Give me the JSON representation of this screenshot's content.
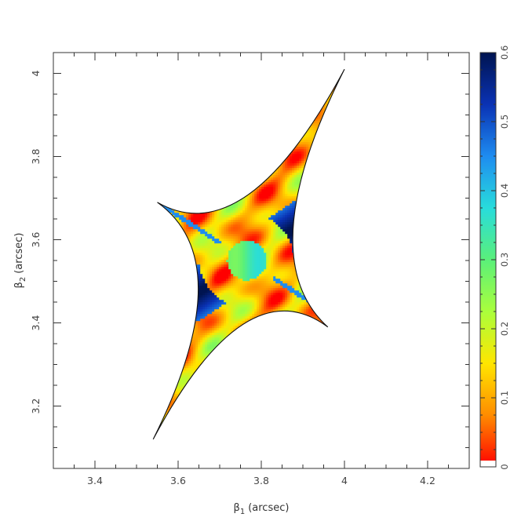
{
  "chart_data": {
    "type": "heatmap",
    "title": "",
    "xlabel": {
      "symbol": "β",
      "subscript": "1",
      "unit": "(arcsec)"
    },
    "ylabel": {
      "symbol": "β",
      "subscript": "2",
      "unit": "(arcsec)"
    },
    "xlim": [
      3.3,
      4.3
    ],
    "ylim": [
      3.05,
      4.05
    ],
    "x_ticks": [
      "3.4",
      "3.6",
      "3.8",
      "4",
      "4.2"
    ],
    "x_tick_values": [
      3.4,
      3.6,
      3.8,
      4.0,
      4.2
    ],
    "y_ticks": [
      "3.2",
      "3.4",
      "3.6",
      "3.8",
      "4"
    ],
    "y_tick_values": [
      3.2,
      3.4,
      3.6,
      3.8,
      4.0
    ],
    "grid": false,
    "caustic_cusps": [
      {
        "x": 4.0,
        "y": 4.01
      },
      {
        "x": 3.55,
        "y": 3.69
      },
      {
        "x": 3.96,
        "y": 3.39
      },
      {
        "x": 3.54,
        "y": 3.12
      }
    ],
    "colorbar": {
      "range": [
        0,
        0.6
      ],
      "ticks": [
        "0",
        "0.1",
        "0.2",
        "0.3",
        "0.4",
        "0.5",
        "0.6"
      ],
      "tick_values": [
        0,
        0.1,
        0.2,
        0.3,
        0.4,
        0.5,
        0.6
      ],
      "colormap": [
        "#ff0000",
        "#ff8c00",
        "#ffe600",
        "#aaff3c",
        "#5af07a",
        "#28dcdc",
        "#1e8cf0",
        "#0a32b4",
        "#001450"
      ]
    }
  }
}
